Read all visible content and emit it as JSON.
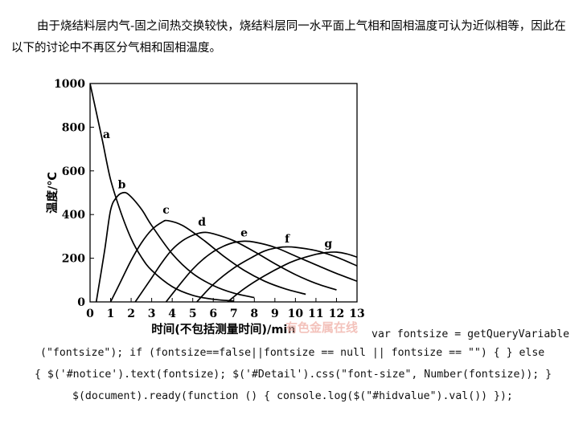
{
  "article": {
    "paragraph": "由于烧结料层内气-固之间热交换较快，烧结料层同一水平面上气相和固相温度可认为近似相等，因此在以下的讨论中不再区分气相和固相温度。"
  },
  "chart_data": {
    "type": "line",
    "xlabel": "时间(不包括测量时间)/min",
    "ylabel": "温度/℃",
    "xlim": [
      0,
      13
    ],
    "ylim": [
      0,
      1000
    ],
    "xticks": [
      "0",
      "1",
      "2",
      "3",
      "4",
      "5",
      "6",
      "7",
      "8",
      "9",
      "10",
      "11",
      "12",
      "13"
    ],
    "yticks": [
      "0",
      "200",
      "400",
      "600",
      "800",
      "1000"
    ],
    "grid": false,
    "series": [
      {
        "name": "a",
        "label_at": [
          0.8,
          750
        ],
        "x": [
          0,
          0.3,
          0.6,
          1,
          1.5,
          2,
          2.5,
          3,
          4,
          5,
          6,
          7
        ],
        "y": [
          1000,
          870,
          740,
          560,
          410,
          290,
          205,
          145,
          70,
          30,
          12,
          4
        ]
      },
      {
        "name": "b",
        "label_at": [
          1.55,
          520
        ],
        "x": [
          0.3,
          0.7,
          1,
          1.3,
          1.6,
          1.9,
          2.5,
          3,
          4,
          5,
          6,
          7,
          8
        ],
        "y": [
          0,
          230,
          420,
          480,
          500,
          490,
          425,
          350,
          220,
          130,
          75,
          40,
          20
        ]
      },
      {
        "name": "c",
        "label_at": [
          3.7,
          405
        ],
        "x": [
          1,
          1.5,
          2,
          2.5,
          3,
          3.5,
          3.8,
          4.5,
          5.5,
          6.5,
          7.5,
          8.5,
          9.5,
          10.5
        ],
        "y": [
          0,
          95,
          190,
          270,
          330,
          365,
          372,
          350,
          285,
          210,
          145,
          95,
          60,
          35
        ]
      },
      {
        "name": "d",
        "label_at": [
          5.45,
          350
        ],
        "x": [
          2.2,
          3,
          3.5,
          4,
          4.5,
          5,
          5.5,
          6,
          7,
          8,
          9,
          10,
          11,
          12
        ],
        "y": [
          0,
          110,
          180,
          240,
          280,
          305,
          318,
          312,
          280,
          230,
          175,
          125,
          85,
          55
        ]
      },
      {
        "name": "e",
        "label_at": [
          7.5,
          300
        ],
        "x": [
          3.7,
          4.5,
          5,
          5.5,
          6,
          6.5,
          7,
          7.5,
          8,
          9,
          10,
          11,
          12,
          13
        ],
        "y": [
          0,
          95,
          150,
          195,
          230,
          255,
          272,
          278,
          274,
          250,
          210,
          170,
          130,
          95
        ]
      },
      {
        "name": "f",
        "label_at": [
          9.6,
          272
        ],
        "x": [
          5.2,
          6,
          7,
          8,
          8.5,
          9,
          9.5,
          10,
          11,
          12,
          13
        ],
        "y": [
          0,
          80,
          155,
          210,
          233,
          246,
          252,
          250,
          235,
          205,
          165
        ]
      },
      {
        "name": "g",
        "label_at": [
          11.6,
          250
        ],
        "x": [
          6.7,
          7.5,
          8.5,
          9.5,
          10,
          10.5,
          11,
          11.5,
          12,
          12.5,
          13
        ],
        "y": [
          0,
          60,
          120,
          170,
          190,
          205,
          218,
          226,
          228,
          220,
          205
        ]
      }
    ]
  },
  "watermark": "有色金属在线",
  "code_lines": [
    "var fontsize = getQueryVariable",
    "(\"fontsize\"); if (fontsize==false||fontsize == null || fontsize == \"\") { } else",
    "{ $('#notice').text(fontsize); $('#Detail').css(\"font-size\", Number(fontsize)); }",
    "$(document).ready(function () { console.log($(\"#hidvalue\").val()) });"
  ]
}
